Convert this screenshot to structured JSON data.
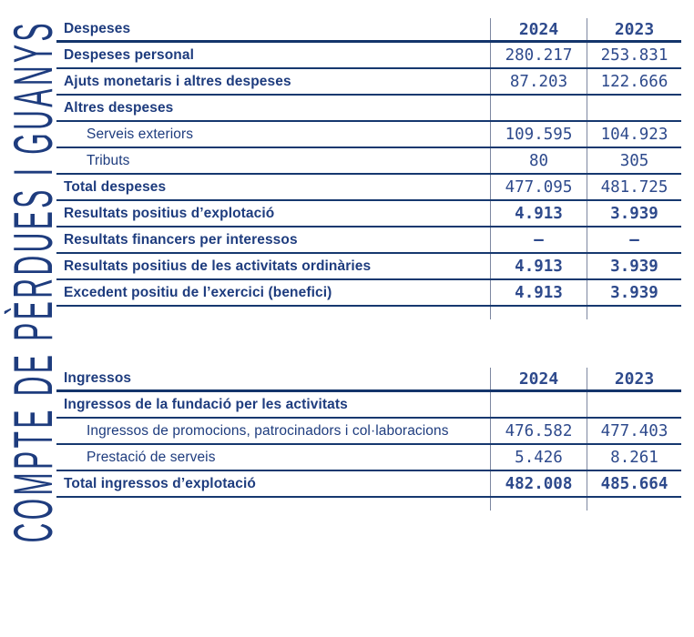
{
  "page": {
    "vertical_title": "COMPTE DE PÈRDUES I GUANYS"
  },
  "colors": {
    "navy_text": "#1e3c7e",
    "number_text": "#2e4a8c",
    "rule_dark": "#14356b",
    "rule_row": "#16386f",
    "rule_column": "#7d87a0",
    "background": "#ffffff"
  },
  "tables": [
    {
      "header": {
        "label": "Despeses",
        "col1": "2024",
        "col2": "2023"
      },
      "rows": [
        {
          "label": "Despeses personal",
          "style": "bold",
          "v1": "280.217",
          "v2": "253.831",
          "vbold": false
        },
        {
          "label": "Ajuts monetaris i altres despeses",
          "style": "bold",
          "v1": "87.203",
          "v2": "122.666",
          "vbold": false
        },
        {
          "label": "Altres despeses",
          "style": "bold",
          "v1": "",
          "v2": "",
          "vbold": false
        },
        {
          "label": "Serveis exteriors",
          "style": "indent",
          "v1": "109.595",
          "v2": "104.923",
          "vbold": false
        },
        {
          "label": "Tributs",
          "style": "indent",
          "v1": "80",
          "v2": "305",
          "vbold": false
        },
        {
          "label": "Total despeses",
          "style": "bold",
          "v1": "477.095",
          "v2": "481.725",
          "vbold": false
        },
        {
          "label": "Resultats positius d’explotació",
          "style": "bold",
          "v1": "4.913",
          "v2": "3.939",
          "vbold": true
        },
        {
          "label": "Resultats financers per interessos",
          "style": "bold",
          "v1": "–",
          "v2": "–",
          "vbold": true
        },
        {
          "label": "Resultats positius de les activitats ordinàries",
          "style": "bold",
          "v1": "4.913",
          "v2": "3.939",
          "vbold": true
        },
        {
          "label": "Excedent positiu de l’exercici (benefici)",
          "style": "bold",
          "v1": "4.913",
          "v2": "3.939",
          "vbold": true
        }
      ]
    },
    {
      "header": {
        "label": "Ingressos",
        "col1": "2024",
        "col2": "2023"
      },
      "rows": [
        {
          "label": "Ingressos de la fundació per les activitats",
          "style": "bold",
          "v1": "",
          "v2": "",
          "vbold": false
        },
        {
          "label": "Ingressos de promocions, patrocinadors i col·laboracions",
          "style": "indent",
          "v1": "476.582",
          "v2": "477.403",
          "vbold": false
        },
        {
          "label": "Prestació de serveis",
          "style": "indent",
          "v1": "5.426",
          "v2": "8.261",
          "vbold": false
        },
        {
          "label": "Total ingressos d’explotació",
          "style": "bold",
          "v1": "482.008",
          "v2": "485.664",
          "vbold": true
        }
      ]
    }
  ]
}
